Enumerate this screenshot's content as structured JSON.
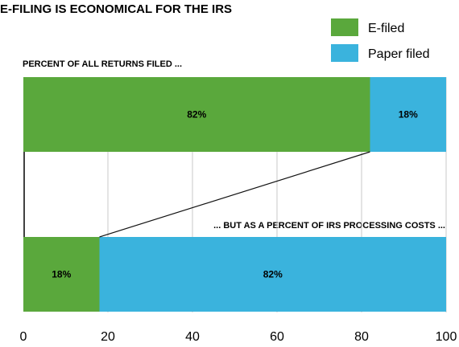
{
  "chart_data": {
    "type": "bar",
    "orientation": "horizontal",
    "stacked": true,
    "title": "E-FILING IS ECONOMICAL FOR THE IRS",
    "groups": [
      {
        "label": "PERCENT OF ALL RETURNS FILED ...",
        "values": [
          82,
          18
        ],
        "data_labels": [
          "82%",
          "18%"
        ]
      },
      {
        "label": "... BUT AS A PERCENT OF IRS PROCESSING COSTS ...",
        "values": [
          18,
          82
        ],
        "data_labels": [
          "18%",
          "82%"
        ]
      }
    ],
    "series": [
      {
        "name": "E-filed",
        "color": "#5aa83c"
      },
      {
        "name": "Paper filed",
        "color": "#3ab3dd"
      }
    ],
    "xlim": [
      0,
      100
    ],
    "xticks": [
      0,
      20,
      40,
      60,
      80,
      100
    ],
    "xtick_labels": [
      "0",
      "20",
      "40",
      "60",
      "80",
      "100"
    ],
    "grid": "vertical",
    "legend_position": "top-right",
    "connector_lines": true
  }
}
